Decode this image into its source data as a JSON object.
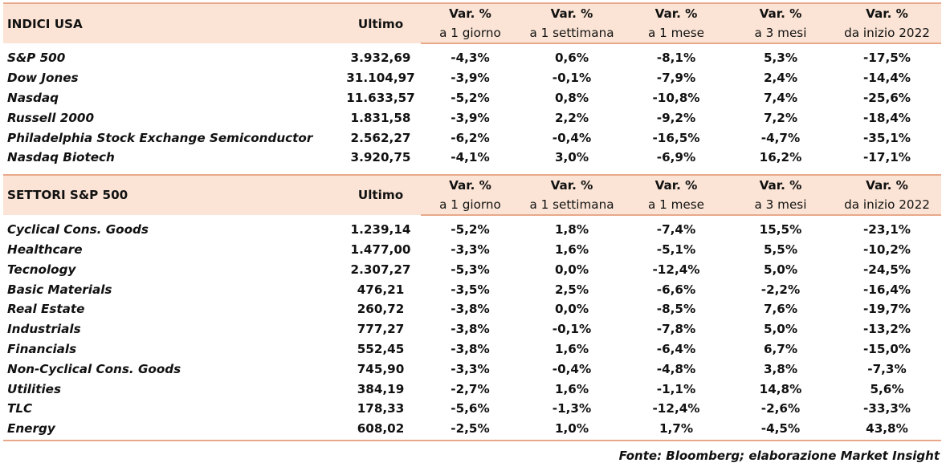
{
  "headers": {
    "last": "Ultimo",
    "col_line1": [
      "Var. %",
      "Var. %",
      "Var. %",
      "Var. %",
      "Var. %"
    ],
    "col_line2": [
      "a 1 giorno",
      "a 1 settimana",
      "a 1 mese",
      "a 3 mesi",
      "da inizio 2022"
    ]
  },
  "section1": {
    "title": "INDICI USA",
    "rows": [
      {
        "name": "S&P 500",
        "last": "3.932,69",
        "d1": "-4,3%",
        "w1": "0,6%",
        "m1": "-8,1%",
        "m3": "5,3%",
        "ytd": "-17,5%"
      },
      {
        "name": "Dow Jones",
        "last": "31.104,97",
        "d1": "-3,9%",
        "w1": "-0,1%",
        "m1": "-7,9%",
        "m3": "2,4%",
        "ytd": "-14,4%"
      },
      {
        "name": "Nasdaq",
        "last": "11.633,57",
        "d1": "-5,2%",
        "w1": "0,8%",
        "m1": "-10,8%",
        "m3": "7,4%",
        "ytd": "-25,6%"
      },
      {
        "name": "Russell 2000",
        "last": "1.831,58",
        "d1": "-3,9%",
        "w1": "2,2%",
        "m1": "-9,2%",
        "m3": "7,2%",
        "ytd": "-18,4%"
      },
      {
        "name": "Philadelphia Stock Exchange Semiconductor",
        "last": "2.562,27",
        "d1": "-6,2%",
        "w1": "-0,4%",
        "m1": "-16,5%",
        "m3": "-4,7%",
        "ytd": "-35,1%"
      },
      {
        "name": "Nasdaq Biotech",
        "last": "3.920,75",
        "d1": "-4,1%",
        "w1": "3,0%",
        "m1": "-6,9%",
        "m3": "16,2%",
        "ytd": "-17,1%"
      }
    ]
  },
  "section2": {
    "title": "SETTORI S&P 500",
    "rows": [
      {
        "name": "Cyclical Cons. Goods",
        "last": "1.239,14",
        "d1": "-5,2%",
        "w1": "1,8%",
        "m1": "-7,4%",
        "m3": "15,5%",
        "ytd": "-23,1%"
      },
      {
        "name": "Healthcare",
        "last": "1.477,00",
        "d1": "-3,3%",
        "w1": "1,6%",
        "m1": "-5,1%",
        "m3": "5,5%",
        "ytd": "-10,2%"
      },
      {
        "name": "Tecnology",
        "last": "2.307,27",
        "d1": "-5,3%",
        "w1": "0,0%",
        "m1": "-12,4%",
        "m3": "5,0%",
        "ytd": "-24,5%"
      },
      {
        "name": "Basic Materials",
        "last": "476,21",
        "d1": "-3,5%",
        "w1": "2,5%",
        "m1": "-6,6%",
        "m3": "-2,2%",
        "ytd": "-16,4%"
      },
      {
        "name": "Real Estate",
        "last": "260,72",
        "d1": "-3,8%",
        "w1": "0,0%",
        "m1": "-8,5%",
        "m3": "7,6%",
        "ytd": "-19,7%"
      },
      {
        "name": "Industrials",
        "last": "777,27",
        "d1": "-3,8%",
        "w1": "-0,1%",
        "m1": "-7,8%",
        "m3": "5,0%",
        "ytd": "-13,2%"
      },
      {
        "name": "Financials",
        "last": "552,45",
        "d1": "-3,8%",
        "w1": "1,6%",
        "m1": "-6,4%",
        "m3": "6,7%",
        "ytd": "-15,0%"
      },
      {
        "name": "Non-Cyclical Cons. Goods",
        "last": "745,90",
        "d1": "-3,3%",
        "w1": "-0,4%",
        "m1": "-4,8%",
        "m3": "3,8%",
        "ytd": "-7,3%"
      },
      {
        "name": "Utilities",
        "last": "384,19",
        "d1": "-2,7%",
        "w1": "1,6%",
        "m1": "-1,1%",
        "m3": "14,8%",
        "ytd": "5,6%"
      },
      {
        "name": "TLC",
        "last": "178,33",
        "d1": "-5,6%",
        "w1": "-1,3%",
        "m1": "-12,4%",
        "m3": "-2,6%",
        "ytd": "-33,3%"
      },
      {
        "name": "Energy",
        "last": "608,02",
        "d1": "-2,5%",
        "w1": "1,0%",
        "m1": "1,7%",
        "m3": "-4,5%",
        "ytd": "43,8%"
      }
    ]
  },
  "footer": "Fonte: Bloomberg; elaborazione Market Insight",
  "colors": {
    "header_bg": "#fbe4d5",
    "rule": "#e8a98a"
  }
}
